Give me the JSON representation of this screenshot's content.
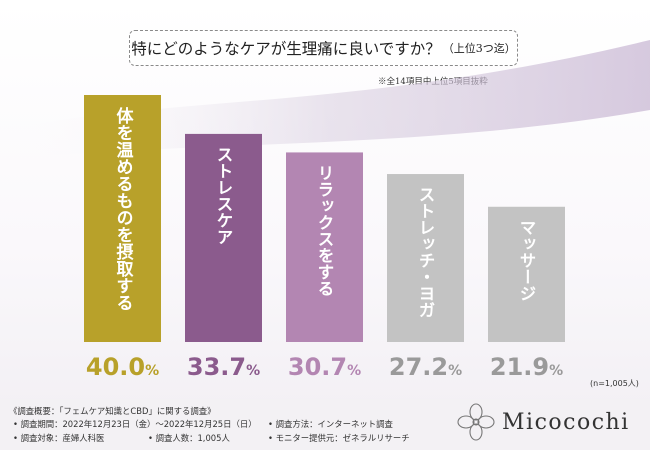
{
  "chart_data": {
    "type": "bar",
    "title": "特にどのようなケアが生理痛に良いですか？",
    "subtitle": "（上位3つ迄）",
    "note": "※全14項目中上位5項目抜粋",
    "unit": "%",
    "categories": [
      "体を温めるものを摂取する",
      "ストレスケア",
      "リラックスをする",
      "ストレッチ・ヨガ",
      "マッサージ"
    ],
    "values": [
      40.0,
      33.7,
      30.7,
      27.2,
      21.9
    ],
    "value_labels": [
      {
        "main": "40.0",
        "unit": "%"
      },
      {
        "main": "33.7",
        "unit": "%"
      },
      {
        "main": "30.7",
        "unit": "%"
      },
      {
        "main": "27.2",
        "unit": "%"
      },
      {
        "main": "21.9",
        "unit": "%"
      }
    ],
    "colors": [
      "#b8a12a",
      "#8b5b8d",
      "#b386b2",
      "#c3c3c3",
      "#c3c3c3"
    ],
    "label_colors": [
      "#b8a12a",
      "#8b5b8d",
      "#b386b2",
      "#9a9a9a",
      "#9a9a9a"
    ],
    "ylim": [
      0,
      40
    ],
    "n_note": "(n=1,005人)"
  },
  "footer": {
    "overview": "《調査概要：「フェムケア知識とCBD」に関する調査》",
    "period": "• 調査期間：2022年12月23日（金）～2022年12月25日（日）",
    "target": "• 調査対象：産婦人科医",
    "count": "• 調査人数：1,005人",
    "method": "• 調査方法：インターネット調査",
    "provider": "• モニター提供元：ゼネラルリサーチ"
  },
  "brand": {
    "name": "Micocochi"
  }
}
